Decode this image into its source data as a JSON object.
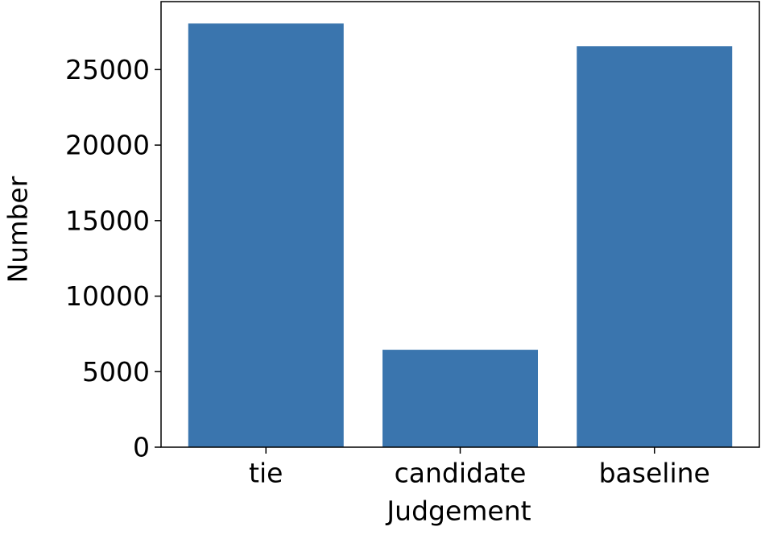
{
  "chart_data": {
    "type": "bar",
    "x_label": "Judgement",
    "y_label": "Number",
    "categories": [
      "tie",
      "candidate",
      "baseline"
    ],
    "values": [
      28050,
      6450,
      26550
    ],
    "color": "#3a75ae",
    "ylim": [
      0,
      29500
    ],
    "yticks": [
      0,
      5000,
      10000,
      15000,
      20000,
      25000
    ],
    "grid": false
  }
}
